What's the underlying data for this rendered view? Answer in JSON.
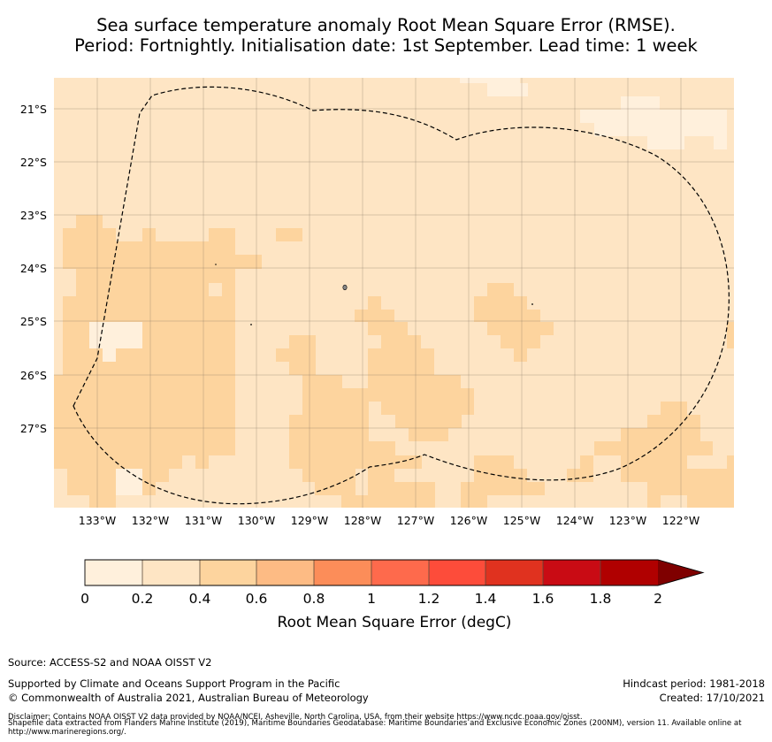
{
  "title": {
    "line1": "Sea surface temperature anomaly Root Mean Square Error (RMSE).",
    "line2": "Period: Fortnightly. Initialisation date: 1st September. Lead time: 1 week"
  },
  "map": {
    "lat_labels": [
      "21°S",
      "22°S",
      "23°S",
      "24°S",
      "25°S",
      "26°S",
      "27°S"
    ],
    "lon_labels": [
      "133°W",
      "132°W",
      "131°W",
      "130°W",
      "129°W",
      "128°W",
      "127°W",
      "126°W",
      "125°W",
      "124°W",
      "123°W",
      "122°W"
    ],
    "eez_boundary": "dashed black line",
    "colors": {
      "bin1": "#fff0dc",
      "bin2": "#fee5c4",
      "bin3": "#fdd49e"
    }
  },
  "colorbar": {
    "label": "Root Mean Square Error (degC)",
    "ticks": [
      "0",
      "0.2",
      "0.4",
      "0.6",
      "0.8",
      "1",
      "1.2",
      "1.4",
      "1.6",
      "1.8",
      "2"
    ],
    "colors": [
      "#fff0dc",
      "#fee5c4",
      "#fdd49e",
      "#fdbb84",
      "#fc8d59",
      "#fe6a4c",
      "#fd4c3a",
      "#e0321f",
      "#c90b14",
      "#b00000"
    ],
    "extend_color": "#7f0000"
  },
  "footer": {
    "source": "Source: ACCESS-S2 and NOAA OISST V2",
    "supported": "Supported by Climate and Oceans Support Program in the Pacific",
    "copyright": "© Commonwealth of Australia 2021, Australian Bureau of Meteorology",
    "hindcast": "Hindcast period: 1981-2018",
    "created": "Created: 17/10/2021",
    "disclaimer": "Disclaimer: Contains NOAA OISST V2 data provided by NOAA/NCEI, Asheville, North Carolina, USA, from their website https://www.ncdc.noaa.gov/oisst.",
    "shapefile": "Shapefile data extracted from Flanders Marine Institute (2019), Maritime Boundaries Geodatabase: Maritime Boundaries and Exclusive Economic Zones (200NM), version 11. Available online at http://www.marineregions.org/."
  }
}
